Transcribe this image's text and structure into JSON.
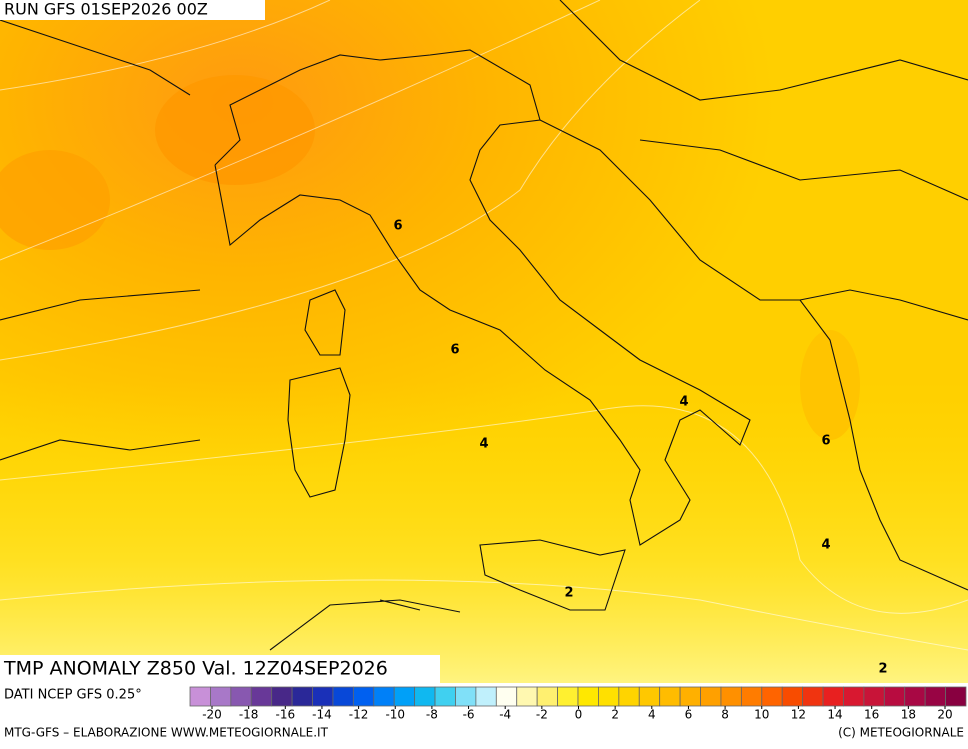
{
  "header": {
    "run": "RUN GFS 01SEP2026 00Z"
  },
  "map": {
    "title": "TMP ANOMALY Z850 Val. 12Z04SEP2026",
    "source": "DATI NCEP GFS 0.25°",
    "contour_labels": [
      6,
      6,
      4,
      4,
      6,
      4,
      2,
      2
    ]
  },
  "colorbar": {
    "colors": [
      "#c890d8",
      "#a878c8",
      "#8858b0",
      "#683898",
      "#482888",
      "#2a2898",
      "#1a30b8",
      "#0848d8",
      "#0060f0",
      "#0080f8",
      "#00a0f8",
      "#10b8f0",
      "#40d0f0",
      "#80e0f8",
      "#c0f0fc",
      "#fffff0",
      "#fff8b0",
      "#fff070",
      "#fff030",
      "#ffe800",
      "#ffe000",
      "#ffd400",
      "#ffc800",
      "#ffbc00",
      "#ffb000",
      "#ffa000",
      "#ff9000",
      "#ff7c00",
      "#ff6400",
      "#f84c00",
      "#f03410",
      "#e82020",
      "#d81830",
      "#c81438",
      "#b80c40",
      "#a80844",
      "#980444",
      "#880040"
    ],
    "ticks": [
      -20,
      -18,
      -16,
      -14,
      -12,
      -10,
      -8,
      -6,
      -4,
      -2,
      0,
      2,
      4,
      6,
      8,
      10,
      12,
      14,
      16,
      18,
      20
    ]
  },
  "footer": {
    "left": "MTG-GFS – ELABORAZIONE WWW.METEOGIORNALE.IT",
    "right": "(C) METEOGIORNALE"
  }
}
